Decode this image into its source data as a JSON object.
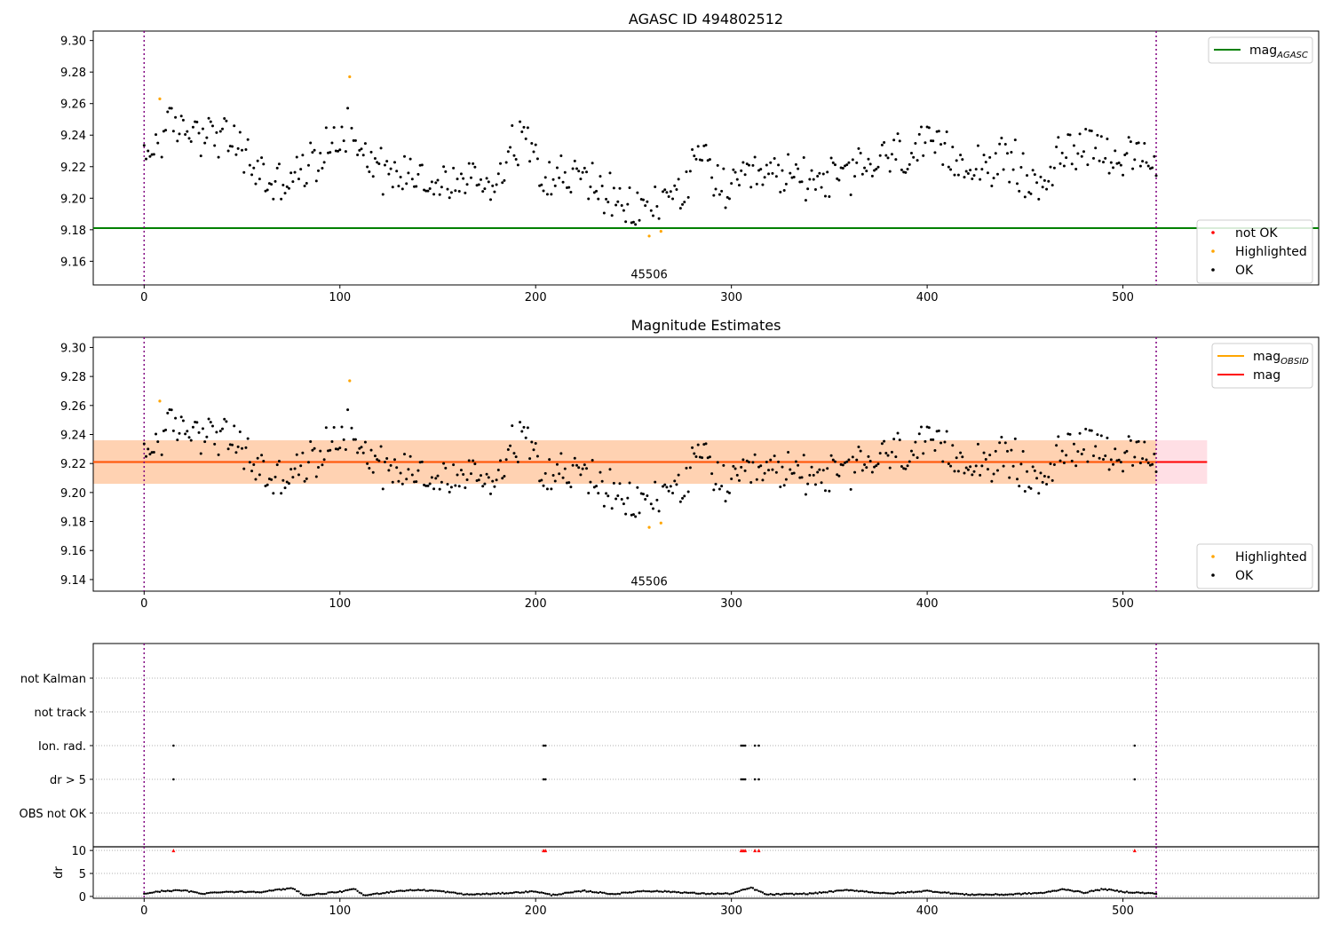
{
  "chart_data": [
    {
      "type": "scatter",
      "title": "AGASC ID 494802512",
      "xlim": [
        -26,
        600
      ],
      "ylim": [
        9.145,
        9.306
      ],
      "yticks": [
        9.16,
        9.18,
        9.2,
        9.22,
        9.24,
        9.26,
        9.28,
        9.3
      ],
      "xticks": [
        0,
        100,
        200,
        300,
        400,
        500
      ],
      "vlines": [
        0,
        517
      ],
      "hline": {
        "y": 9.181,
        "color": "#008000",
        "label": "mag",
        "label_sub": "AGASC"
      },
      "annotation": {
        "text": "45506",
        "x": 258,
        "y": 9.152
      },
      "legend_top": [
        {
          "label": "mag",
          "sub": "AGASC",
          "color": "#008000",
          "kind": "line"
        }
      ],
      "legend_bottom": [
        {
          "label": "not OK",
          "color": "#ff0000",
          "kind": "dot"
        },
        {
          "label": "Highlighted",
          "color": "#ffa500",
          "kind": "dot"
        },
        {
          "label": "OK",
          "color": "#000000",
          "kind": "dot"
        }
      ],
      "highlighted": [
        [
          8,
          9.263
        ],
        [
          105,
          9.277
        ],
        [
          258,
          9.176
        ],
        [
          264,
          9.179
        ]
      ],
      "not_ok": []
    },
    {
      "type": "scatter",
      "title": "Magnitude Estimates",
      "xlim": [
        -26,
        600
      ],
      "ylim": [
        9.132,
        9.307
      ],
      "yticks": [
        9.14,
        9.16,
        9.18,
        9.2,
        9.22,
        9.24,
        9.26,
        9.28,
        9.3
      ],
      "xticks": [
        0,
        100,
        200,
        300,
        400,
        500
      ],
      "vlines": [
        0,
        517
      ],
      "mean": 9.221,
      "band_outer": [
        9.206,
        9.236
      ],
      "band_inner": [
        9.206,
        9.236
      ],
      "band_xrange": [
        -26,
        543
      ],
      "annotation": {
        "text": "45506",
        "x": 258,
        "y": 9.139
      },
      "legend_top": [
        {
          "label": "mag",
          "sub": "OBSID",
          "color": "#ffa500",
          "kind": "line"
        },
        {
          "label": "mag",
          "sub": "",
          "color": "#ff0000",
          "kind": "line"
        }
      ],
      "legend_bottom": [
        {
          "label": "Highlighted",
          "color": "#ffa500",
          "kind": "dot"
        },
        {
          "label": "OK",
          "color": "#000000",
          "kind": "dot"
        }
      ],
      "highlighted": [
        [
          8,
          9.263
        ],
        [
          105,
          9.277
        ],
        [
          258,
          9.176
        ],
        [
          264,
          9.179
        ]
      ]
    },
    {
      "type": "scatter",
      "title": "",
      "xlim": [
        -26,
        600
      ],
      "xticks": [
        0,
        100,
        200,
        300,
        400,
        500
      ],
      "vlines": [
        0,
        517
      ],
      "flag_rows": [
        "not Kalman",
        "not track",
        "Ion. rad.",
        "dr > 5",
        "OBS not OK"
      ],
      "flag_points": {
        "not Kalman": [],
        "not track": [],
        "Ion. rad.": [
          15,
          204,
          205,
          305,
          306,
          307,
          312,
          314,
          506
        ],
        "dr > 5": [
          15,
          204,
          205,
          305,
          306,
          307,
          312,
          314,
          506
        ],
        "OBS not OK": []
      }
    },
    {
      "type": "scatter",
      "ylabel": "dr",
      "xlim": [
        -26,
        600
      ],
      "ylim": [
        -0.4,
        10.8
      ],
      "yticks": [
        0,
        5,
        10
      ],
      "xticks": [
        0,
        100,
        200,
        300,
        400,
        500
      ],
      "vlines": [
        0,
        517
      ],
      "outliers": [
        15,
        204,
        205,
        305,
        306,
        307,
        312,
        314,
        506
      ],
      "outlier_value": 10
    }
  ],
  "series_generator": {
    "x_count": 518,
    "mag_profile": [
      [
        0,
        9.222
      ],
      [
        8,
        9.24
      ],
      [
        15,
        9.245
      ],
      [
        30,
        9.243
      ],
      [
        45,
        9.236
      ],
      [
        55,
        9.222
      ],
      [
        65,
        9.208
      ],
      [
        80,
        9.215
      ],
      [
        95,
        9.233
      ],
      [
        105,
        9.248
      ],
      [
        112,
        9.232
      ],
      [
        125,
        9.214
      ],
      [
        140,
        9.218
      ],
      [
        150,
        9.207
      ],
      [
        165,
        9.212
      ],
      [
        180,
        9.21
      ],
      [
        188,
        9.236
      ],
      [
        198,
        9.236
      ],
      [
        205,
        9.215
      ],
      [
        230,
        9.211
      ],
      [
        245,
        9.19
      ],
      [
        262,
        9.196
      ],
      [
        278,
        9.21
      ],
      [
        285,
        9.227
      ],
      [
        298,
        9.202
      ],
      [
        310,
        9.212
      ],
      [
        330,
        9.215
      ],
      [
        355,
        9.212
      ],
      [
        380,
        9.226
      ],
      [
        400,
        9.231
      ],
      [
        420,
        9.223
      ],
      [
        445,
        9.222
      ],
      [
        455,
        9.205
      ],
      [
        465,
        9.222
      ],
      [
        480,
        9.238
      ],
      [
        500,
        9.225
      ],
      [
        517,
        9.219
      ]
    ],
    "dr_profile": [
      [
        0,
        0.6
      ],
      [
        10,
        1.2
      ],
      [
        20,
        1.3
      ],
      [
        30,
        0.6
      ],
      [
        40,
        1.0
      ],
      [
        60,
        1.0
      ],
      [
        76,
        1.8
      ],
      [
        82,
        0.2
      ],
      [
        100,
        1.0
      ],
      [
        108,
        1.6
      ],
      [
        112,
        0.2
      ],
      [
        130,
        1.2
      ],
      [
        140,
        1.4
      ],
      [
        150,
        1.2
      ],
      [
        165,
        0.4
      ],
      [
        180,
        0.6
      ],
      [
        200,
        1.1
      ],
      [
        208,
        0.3
      ],
      [
        225,
        1.2
      ],
      [
        240,
        0.5
      ],
      [
        255,
        1.2
      ],
      [
        270,
        1.0
      ],
      [
        285,
        0.6
      ],
      [
        300,
        0.6
      ],
      [
        310,
        1.9
      ],
      [
        318,
        0.4
      ],
      [
        340,
        0.6
      ],
      [
        360,
        1.4
      ],
      [
        380,
        0.6
      ],
      [
        400,
        1.2
      ],
      [
        420,
        0.4
      ],
      [
        440,
        0.4
      ],
      [
        460,
        0.8
      ],
      [
        470,
        1.6
      ],
      [
        480,
        0.8
      ],
      [
        490,
        1.6
      ],
      [
        500,
        1.0
      ],
      [
        517,
        0.6
      ]
    ]
  }
}
